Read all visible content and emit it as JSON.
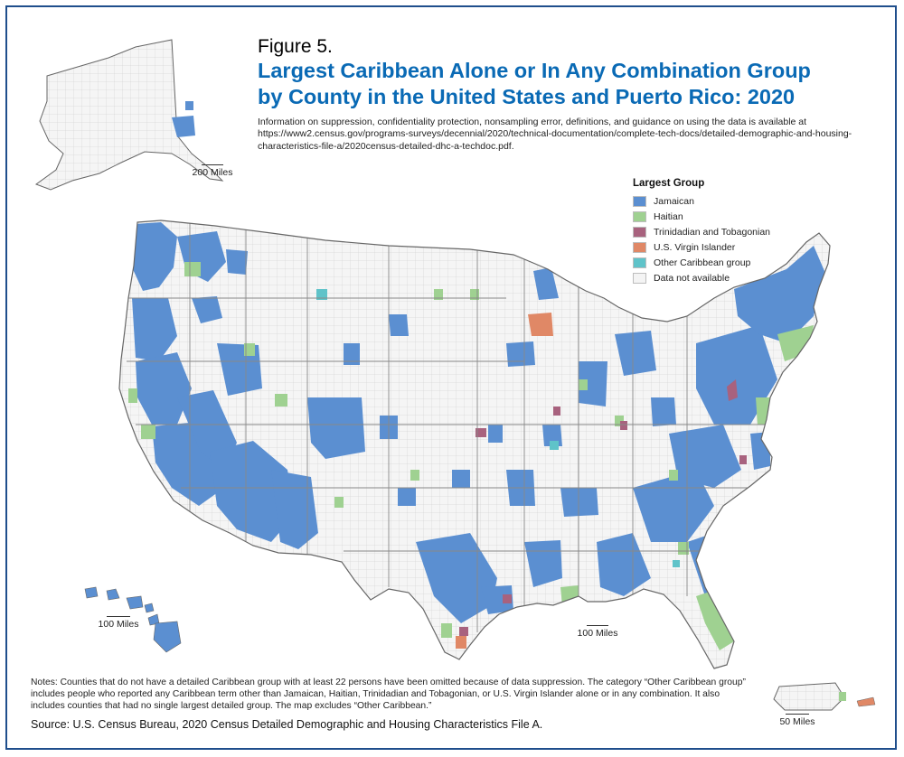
{
  "figure_label": "Figure 5.",
  "title_line1": "Largest Caribbean Alone or In Any Combination Group",
  "title_line2": "by County in the United States and Puerto Rico: 2020",
  "info_text": "Information on suppression, confidentiality protection, nonsampling error, definitions, and guidance on using the data is available at https://www2.census.gov/programs-surveys/decennial/2020/technical-documentation/complete-tech-docs/detailed-demographic-and-housing-characteristics-file-a/2020census-detailed-dhc-a-techdoc.pdf.",
  "legend": {
    "title": "Largest Group",
    "items": [
      {
        "label": "Jamaican",
        "color": "#5b8fd1"
      },
      {
        "label": "Haitian",
        "color": "#9fd191"
      },
      {
        "label": "Trinidadian and Tobagonian",
        "color": "#a8627e"
      },
      {
        "label": "U.S. Virgin Islander",
        "color": "#e08866"
      },
      {
        "label": "Other Caribbean group",
        "color": "#5fc3c9"
      },
      {
        "label": "Data not available",
        "color": "#f4f4f4"
      }
    ]
  },
  "scales": {
    "alaska": "200 Miles",
    "hawaii": "100 Miles",
    "conus": "100 Miles",
    "puerto_rico": "50 Miles"
  },
  "notes": "Notes: Counties that do not have a detailed Caribbean group with at least 22 persons have been omitted because of data suppression. The category “Other Caribbean group” includes people who reported any Caribbean term other than Jamaican, Haitian, Trinidadian and Tobagonian, or U.S. Virgin Islander alone or in any combination. It also includes counties that had no single largest detailed group. The map excludes “Other Caribbean.”",
  "source": "Source: U.S. Census Bureau, 2020 Census Detailed Demographic and Housing Characteristics File A."
}
